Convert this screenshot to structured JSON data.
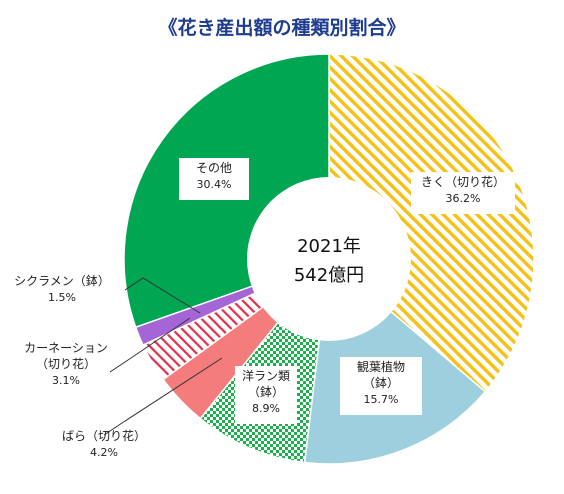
{
  "chart_data": {
    "type": "donut",
    "title": "《花き産出額の種類別割合》",
    "center_text": [
      "2021年",
      "542億円"
    ],
    "slices": [
      {
        "name": "きく（切り花）",
        "lines": [
          "きく（切り花）"
        ],
        "value": 36.2,
        "pct": "36.2%",
        "color": "#f4c21a",
        "fill": "hatch"
      },
      {
        "name": "観葉植物（鉢）",
        "lines": [
          "観葉植物",
          "（鉢）"
        ],
        "value": 15.7,
        "pct": "15.7%",
        "color": "#9dcfdf",
        "fill": "solid"
      },
      {
        "name": "洋ラン類（鉢）",
        "lines": [
          "洋ラン類",
          "（鉢）"
        ],
        "value": 8.9,
        "pct": "8.9%",
        "color": "#19b24a",
        "fill": "checker"
      },
      {
        "name": "ばら（切り花）",
        "lines": [
          "ばら（切り花）"
        ],
        "value": 4.2,
        "pct": "4.2%",
        "color": "#f47c7c",
        "fill": "solid"
      },
      {
        "name": "カーネーション（切り花）",
        "lines": [
          "カーネーション",
          "（切り花）"
        ],
        "value": 3.1,
        "pct": "3.1%",
        "color": "#e0304a",
        "fill": "hatch-red"
      },
      {
        "name": "シクラメン（鉢）",
        "lines": [
          "シクラメン（鉢）"
        ],
        "value": 1.5,
        "pct": "1.5%",
        "color": "#a565d6",
        "fill": "solid"
      },
      {
        "name": "その他",
        "lines": [
          "その他"
        ],
        "value": 30.4,
        "pct": "30.4%",
        "color": "#00a651",
        "fill": "solid"
      }
    ]
  }
}
